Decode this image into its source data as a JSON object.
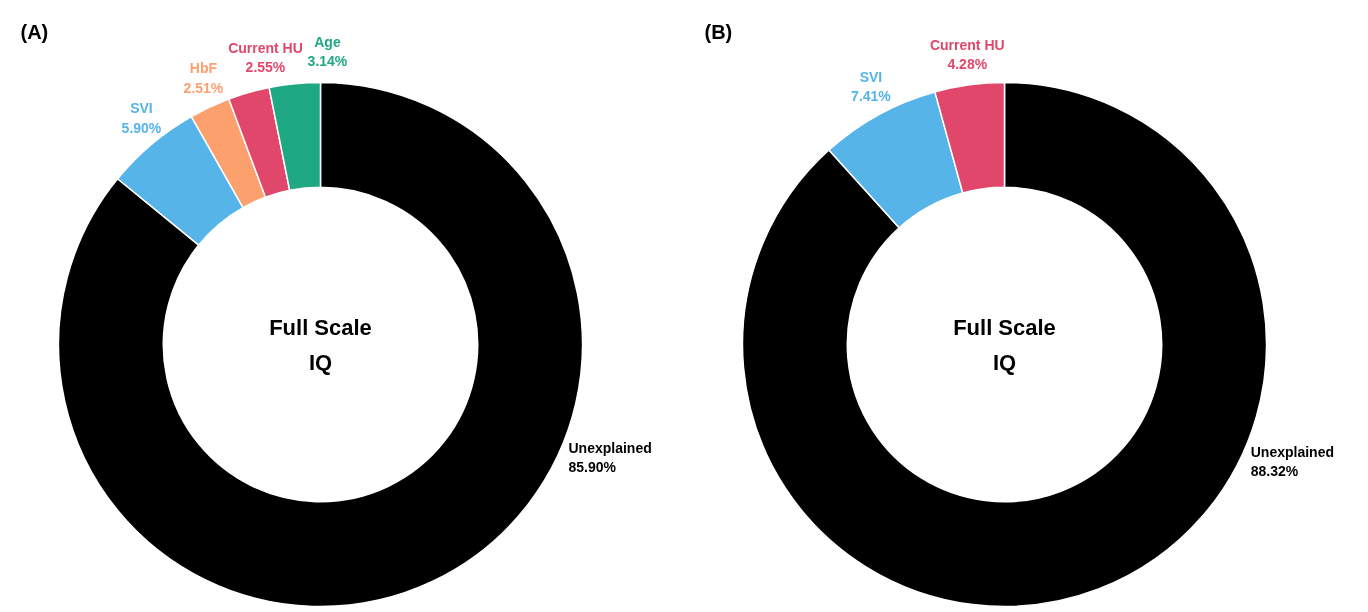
{
  "chart_data": [
    {
      "type": "donut",
      "title": "(A)",
      "categories": [
        "Unexplained",
        "SVI",
        "HbF",
        "Current HU",
        "Age"
      ],
      "values": [
        85.9,
        5.9,
        2.51,
        2.55,
        3.14
      ],
      "value_labels": [
        "85.90%",
        "5.90%",
        "2.51%",
        "2.55%",
        "3.14%"
      ],
      "colors": [
        "#000000",
        "#56b4e9",
        "#fca06e",
        "#e0476a",
        "#1fa884"
      ],
      "annotations": [
        "Full Scale\nIQ"
      ]
    },
    {
      "type": "donut",
      "title": "(B)",
      "categories": [
        "Unexplained",
        "SVI",
        "Current HU"
      ],
      "values": [
        88.32,
        7.41,
        4.28
      ],
      "value_labels": [
        "88.32%",
        "7.41%",
        "4.28%"
      ],
      "colors": [
        "#000000",
        "#56b4e9",
        "#e0476a"
      ],
      "annotations": [
        "Full Scale\nIQ"
      ]
    }
  ]
}
